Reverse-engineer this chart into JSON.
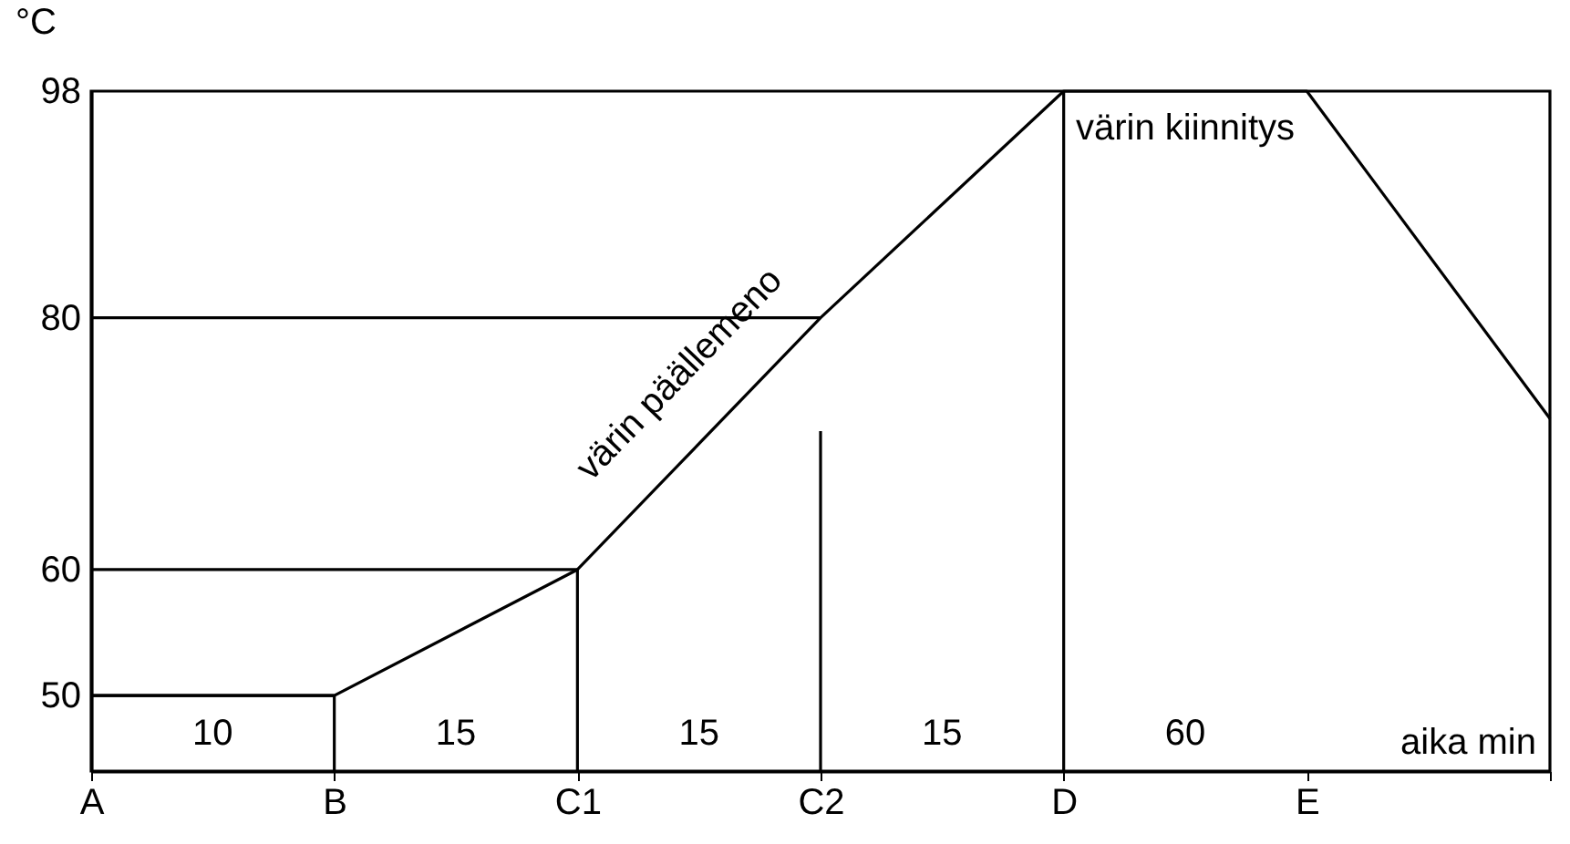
{
  "chart_data": {
    "type": "line",
    "xlabel": "aika min",
    "ylabel": "°C",
    "categories": [
      "A",
      "B",
      "C1",
      "C2",
      "D",
      "E",
      null
    ],
    "ylim": [
      44,
      98
    ],
    "yticks": [
      50,
      60,
      80,
      98
    ],
    "grid": false,
    "marker": "none",
    "line_style": "solid",
    "series": [
      {
        "color": "#000000",
        "values": [
          50,
          50,
          60,
          80,
          98,
          98,
          72
        ]
      },
      {
        "color": "#000000",
        "x": [
          "A",
          "B"
        ],
        "values": [
          50,
          50
        ]
      },
      {
        "color": "#000000",
        "x": [
          "A",
          "C1"
        ],
        "values": [
          60,
          60
        ]
      },
      {
        "color": "#000000",
        "x": [
          "A",
          "C2"
        ],
        "values": [
          80,
          80
        ]
      },
      {
        "color": "#000000",
        "x": [
          "B",
          "B"
        ],
        "values": [
          44,
          50
        ]
      },
      {
        "color": "#000000",
        "x": [
          "C1",
          "C1"
        ],
        "values": [
          44,
          60
        ]
      },
      {
        "color": "#000000",
        "x": [
          "C2",
          "C2"
        ],
        "values": [
          44,
          71
        ]
      },
      {
        "color": "#000000",
        "x": [
          "D",
          "D"
        ],
        "values": [
          44,
          98
        ]
      }
    ],
    "annotations": [
      "10",
      "15",
      "15",
      "15",
      "60",
      "värin kiinnitys",
      "värin päällemeno"
    ]
  }
}
